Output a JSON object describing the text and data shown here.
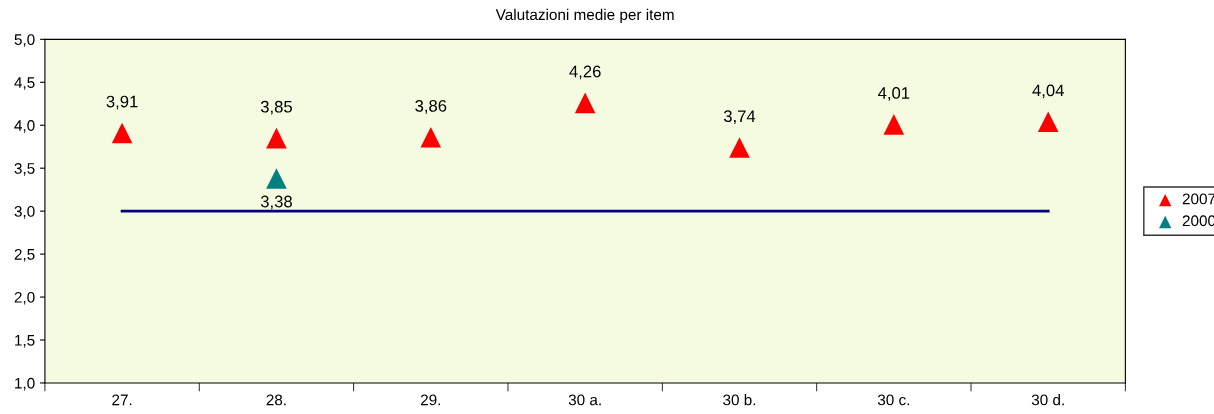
{
  "chart_data": {
    "type": "scatter",
    "title": "Valutazioni medie per item",
    "categories": [
      "27.",
      "28.",
      "29.",
      "30 a.",
      "30 b.",
      "30 c.",
      "30 d."
    ],
    "series": [
      {
        "name": "2007",
        "color": "#ff0000",
        "values": [
          3.91,
          3.85,
          3.86,
          4.26,
          3.74,
          4.01,
          4.04
        ],
        "value_labels": [
          "3,91",
          "3,85",
          "3,86",
          "4,26",
          "3,74",
          "4,01",
          "4,04"
        ]
      },
      {
        "name": "2000",
        "color": "#008080",
        "values": [
          null,
          3.38,
          null,
          null,
          null,
          null,
          null
        ],
        "value_labels": [
          null,
          "3,38",
          null,
          null,
          null,
          null,
          null
        ]
      }
    ],
    "ref_lines": [
      {
        "axis": "y",
        "value": 3.0,
        "label": null,
        "color": "#000080",
        "line_style": "solid"
      }
    ],
    "ylim": [
      1.0,
      5.0
    ],
    "yticks": [
      {
        "value": 1.0,
        "label": "1,0"
      },
      {
        "value": 1.5,
        "label": "1,5"
      },
      {
        "value": 2.0,
        "label": "2,0"
      },
      {
        "value": 2.5,
        "label": "2,5"
      },
      {
        "value": 3.0,
        "label": "3,0"
      },
      {
        "value": 3.5,
        "label": "3,5"
      },
      {
        "value": 4.0,
        "label": "4,0"
      },
      {
        "value": 4.5,
        "label": "4,5"
      },
      {
        "value": 5.0,
        "label": "5,0"
      }
    ],
    "marker": "triangle",
    "grid": false,
    "legend": "right"
  }
}
